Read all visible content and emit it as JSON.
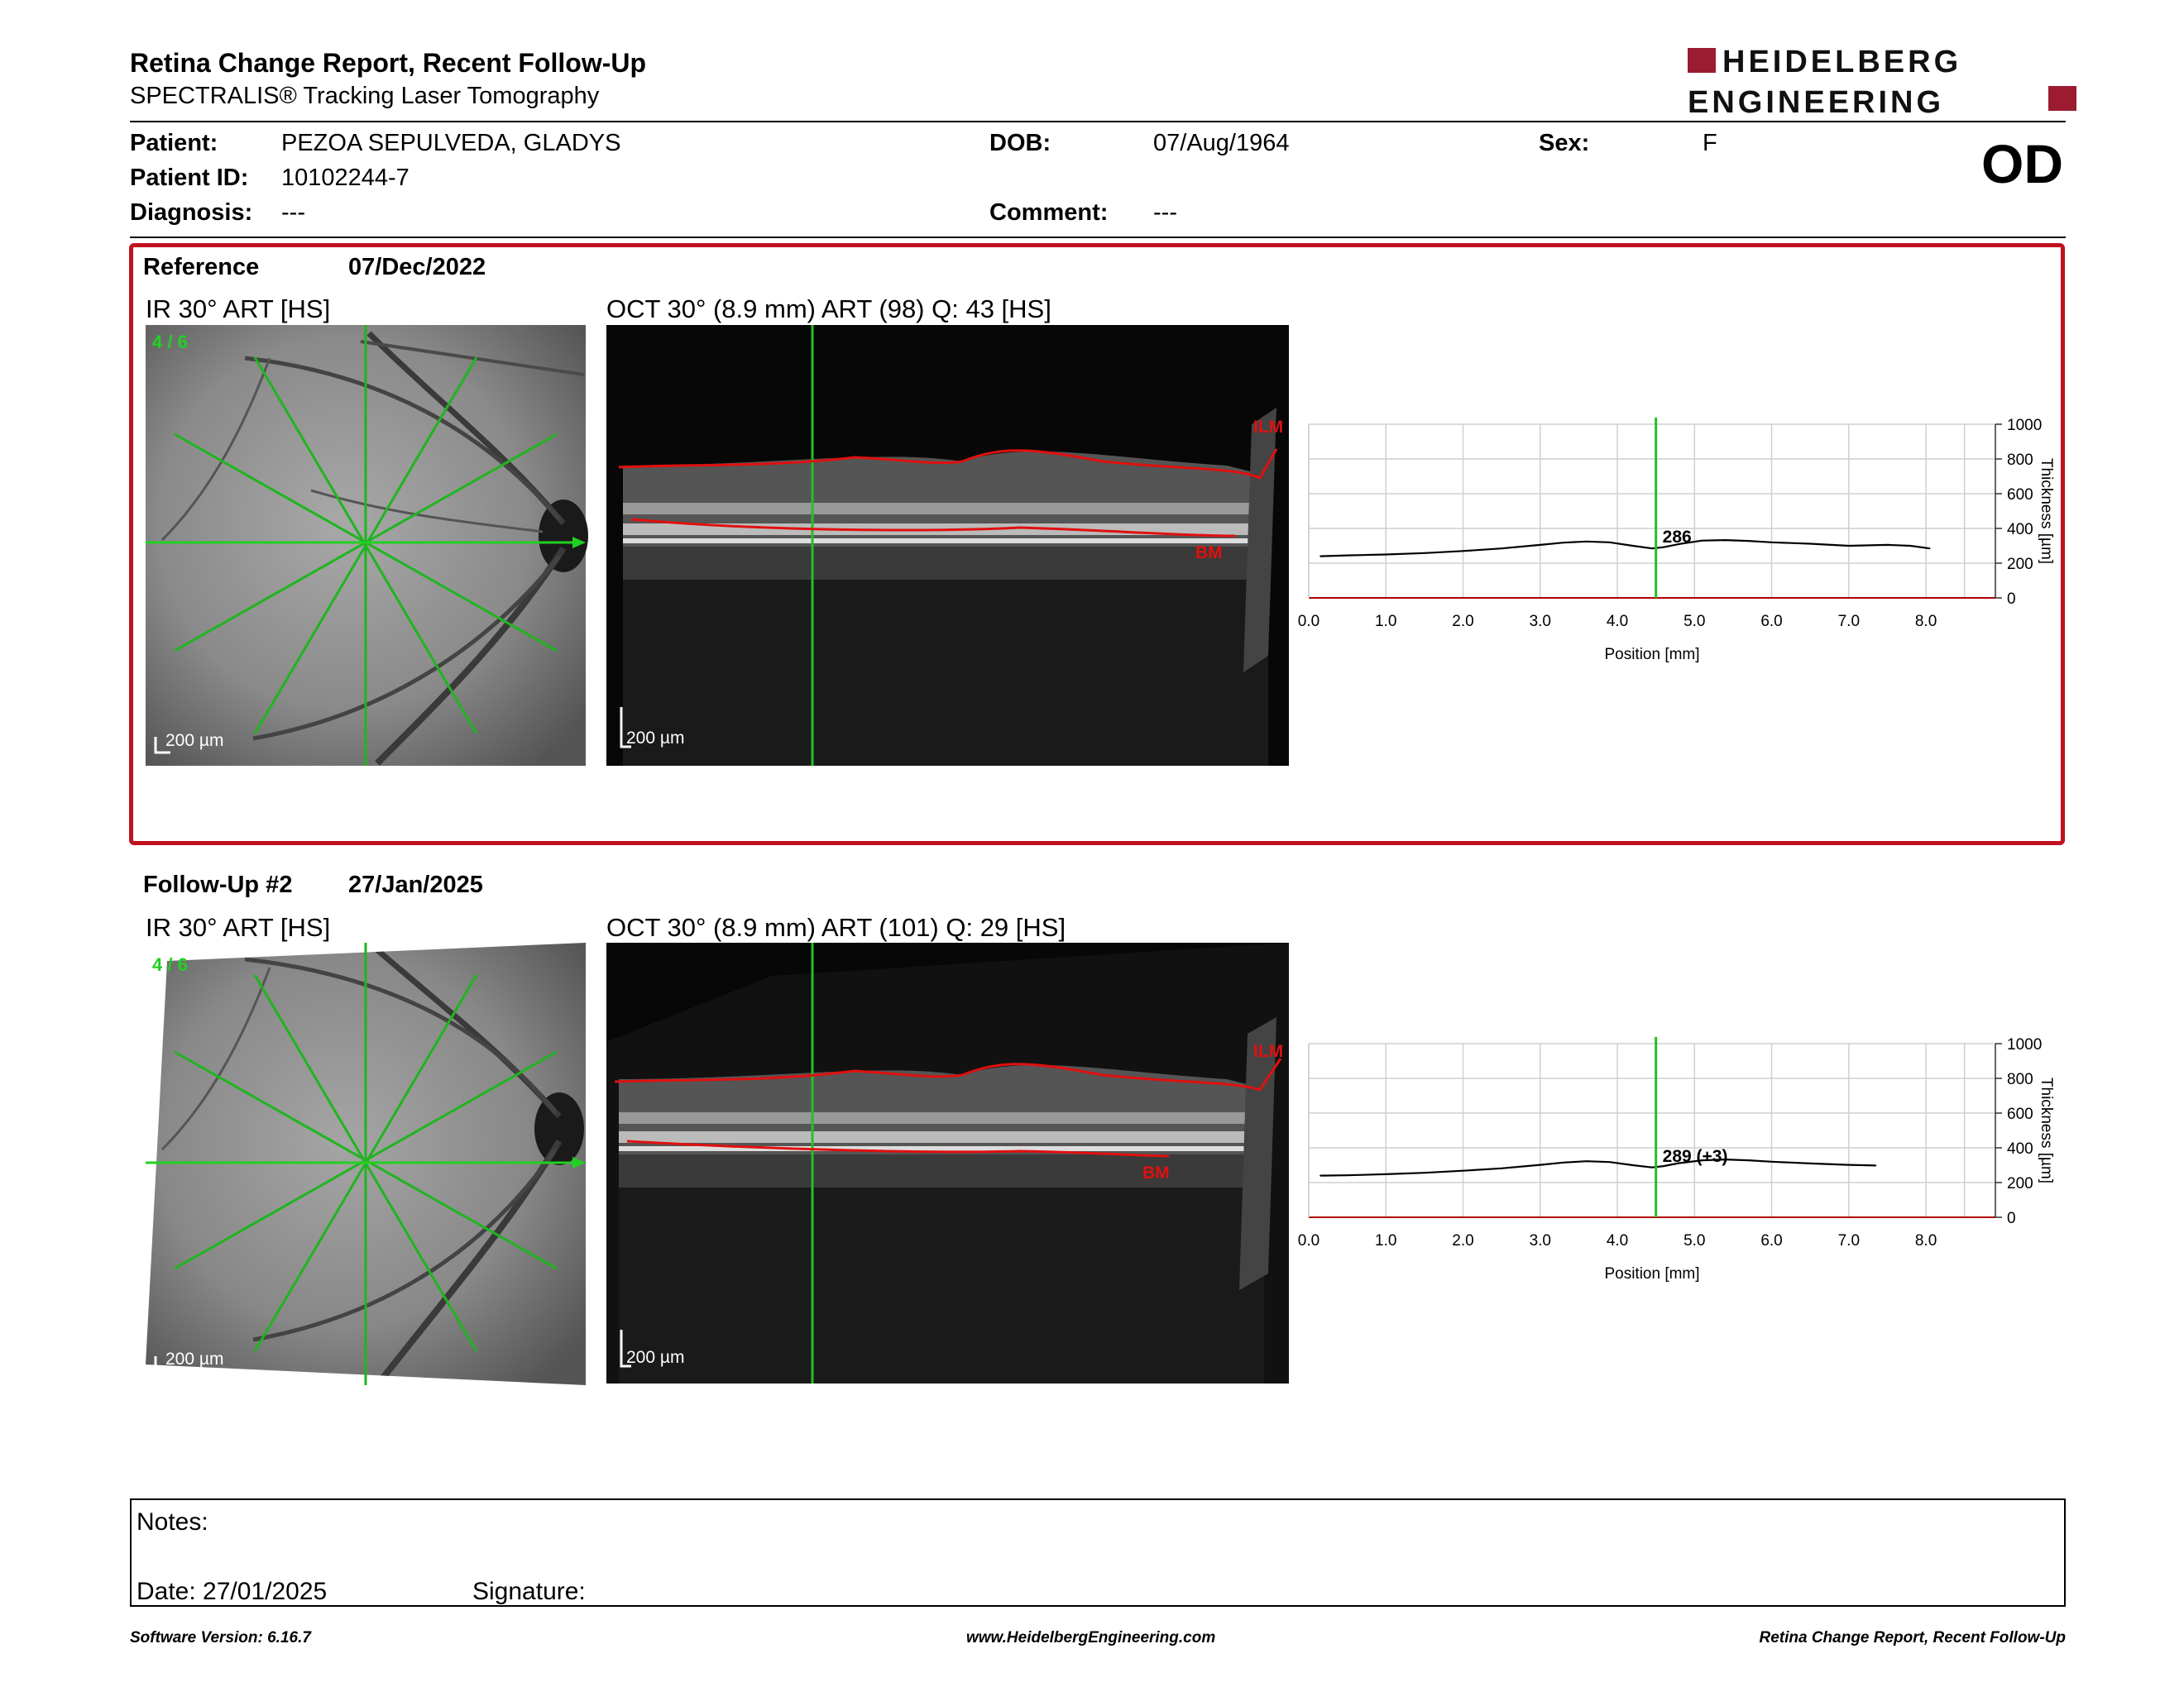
{
  "header": {
    "title": "Retina Change Report, Recent Follow-Up",
    "subtitle": "SPECTRALIS® Tracking Laser Tomography",
    "logo_line1": "HEIDELBERG",
    "logo_line2": "ENGINEERING",
    "eye": "OD"
  },
  "patient": {
    "patient_label": "Patient:",
    "patient_value": "PEZOA SEPULVEDA, GLADYS",
    "id_label": "Patient ID:",
    "id_value": "10102244-7",
    "diagnosis_label": "Diagnosis:",
    "diagnosis_value": "---",
    "dob_label": "DOB:",
    "dob_value": "07/Aug/1964",
    "comment_label": "Comment:",
    "comment_value": "---",
    "sex_label": "Sex:",
    "sex_value": "F"
  },
  "reference": {
    "label": "Reference",
    "date": "07/Dec/2022",
    "ir_caption": "IR 30° ART [HS]",
    "oct_caption": "OCT 30° (8.9 mm) ART (98) Q: 43 [HS]",
    "scan_index": "4 / 6",
    "scale_label": "200 µm",
    "ilm_label": "ILM",
    "bm_label": "BM",
    "cursor_value": "286"
  },
  "followup": {
    "label": "Follow-Up #2",
    "date": "27/Jan/2025",
    "ir_caption": "IR 30° ART [HS]",
    "oct_caption": "OCT 30° (8.9 mm) ART (101) Q: 29 [HS]",
    "scan_index": "4 / 6",
    "scale_label": "200 µm",
    "ilm_label": "ILM",
    "bm_label": "BM",
    "cursor_value": "289 (+3)"
  },
  "chart_data": [
    {
      "type": "line",
      "xlabel": "Position [mm]",
      "ylabel": "Thickness [µm]",
      "xlim": [
        0.0,
        8.9
      ],
      "ylim": [
        0,
        1000
      ],
      "xticks": [
        "0.0",
        "1.0",
        "2.0",
        "3.0",
        "4.0",
        "5.0",
        "6.0",
        "7.0",
        "8.0"
      ],
      "yticks": [
        "0",
        "200",
        "400",
        "600",
        "800",
        "1000"
      ],
      "cursor_x": 4.5,
      "cursor_label": "286",
      "grid": true,
      "x": [
        0.15,
        0.5,
        1.0,
        1.5,
        2.0,
        2.5,
        3.0,
        3.3,
        3.6,
        3.9,
        4.2,
        4.45,
        4.6,
        4.8,
        5.1,
        5.4,
        5.7,
        6.0,
        6.5,
        7.0,
        7.5,
        7.8,
        8.05
      ],
      "values": [
        240,
        245,
        250,
        258,
        270,
        285,
        305,
        318,
        325,
        320,
        300,
        285,
        292,
        310,
        330,
        333,
        328,
        320,
        312,
        300,
        305,
        300,
        285
      ]
    },
    {
      "type": "line",
      "xlabel": "Position [mm]",
      "ylabel": "Thickness [µm]",
      "xlim": [
        0.0,
        8.9
      ],
      "ylim": [
        0,
        1000
      ],
      "xticks": [
        "0.0",
        "1.0",
        "2.0",
        "3.0",
        "4.0",
        "5.0",
        "6.0",
        "7.0",
        "8.0"
      ],
      "yticks": [
        "0",
        "200",
        "400",
        "600",
        "800",
        "1000"
      ],
      "cursor_x": 4.5,
      "cursor_label": "289 (+3)",
      "grid": true,
      "x": [
        0.15,
        0.5,
        1.0,
        1.5,
        2.0,
        2.5,
        3.0,
        3.3,
        3.6,
        3.9,
        4.2,
        4.45,
        4.6,
        4.8,
        5.1,
        5.4,
        5.7,
        6.0,
        6.5,
        7.0,
        7.35
      ],
      "values": [
        240,
        242,
        248,
        256,
        268,
        282,
        302,
        315,
        323,
        318,
        300,
        287,
        295,
        312,
        328,
        333,
        328,
        320,
        310,
        302,
        298
      ]
    }
  ],
  "notes": {
    "notes_label": "Notes:",
    "date_label": "Date: 27/01/2025",
    "signature_label": "Signature:"
  },
  "footer": {
    "left": "Software Version: 6.16.7",
    "center": "www.HeidelbergEngineering.com",
    "right": "Retina Change Report, Recent Follow-Up"
  },
  "colors": {
    "brand": "#9b1b30",
    "frame": "#c0111f",
    "scan_line": "#22c222",
    "layer": "#e01010"
  }
}
